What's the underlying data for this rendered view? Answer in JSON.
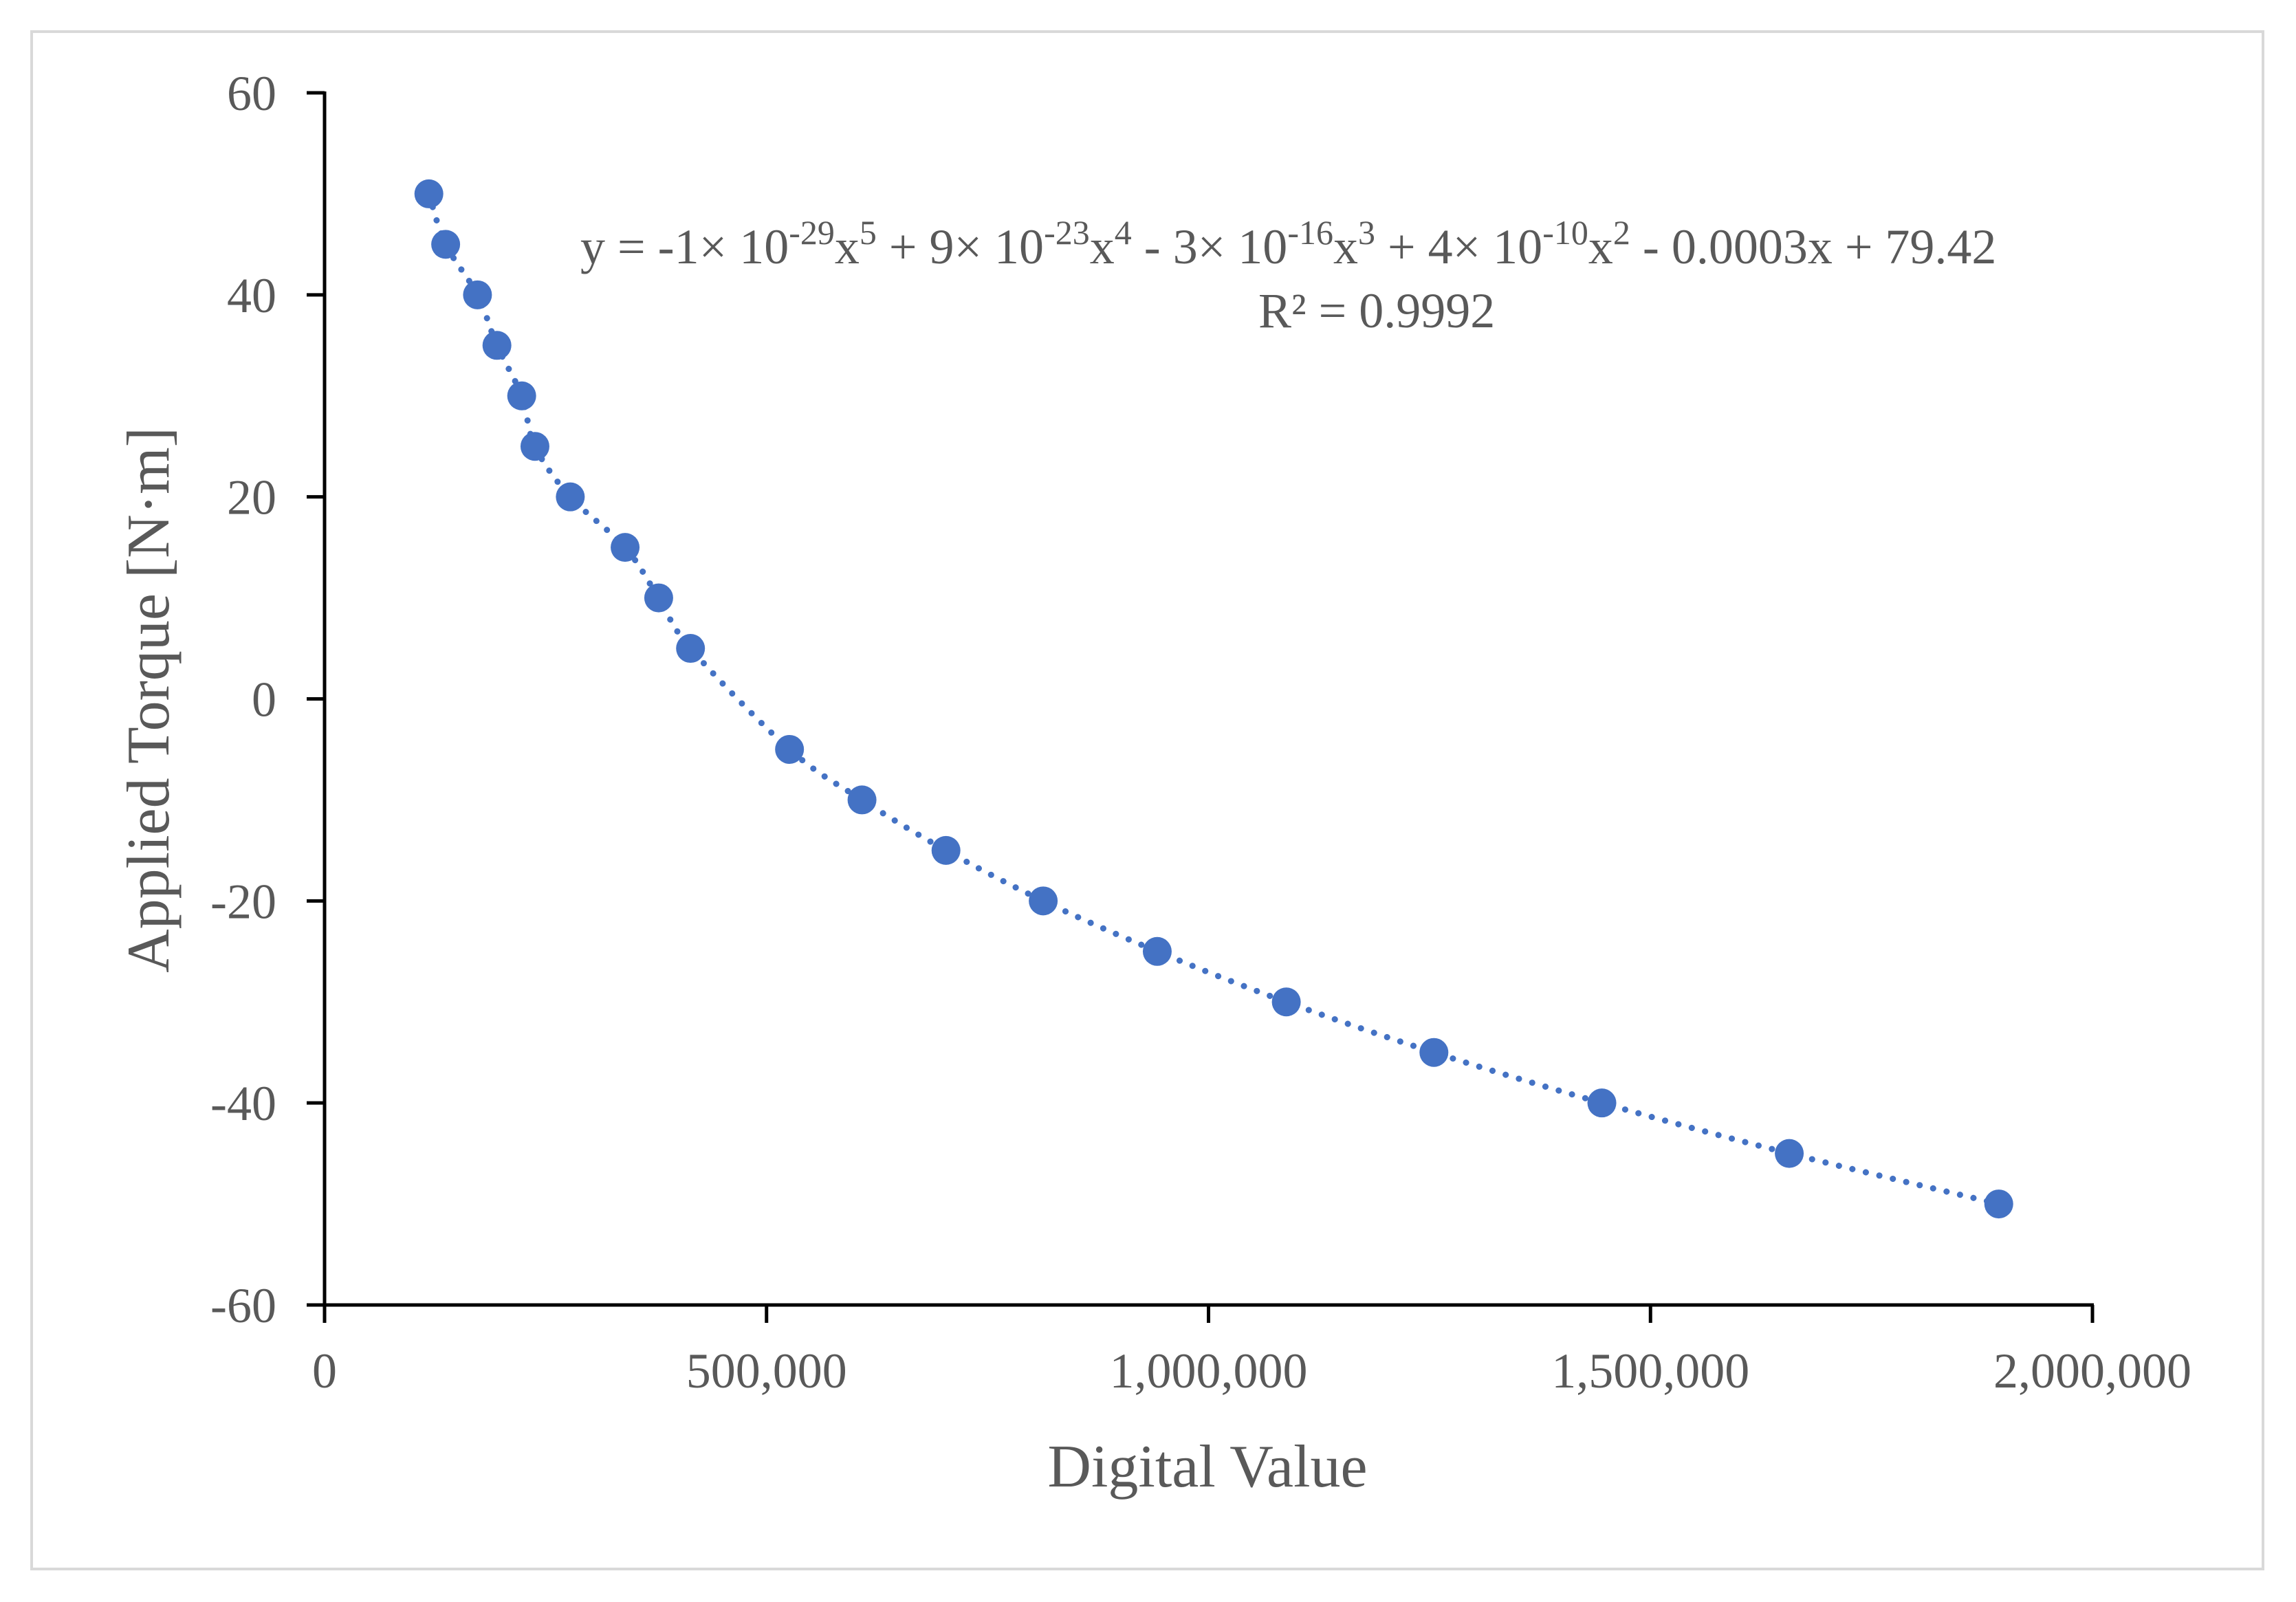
{
  "chart_data": {
    "type": "scatter",
    "title": "",
    "xlabel": "Digital Value",
    "ylabel": "Applied Torque [N·m]",
    "xlim": [
      0,
      2000000
    ],
    "ylim": [
      -60,
      60
    ],
    "x_ticks": [
      0,
      500000,
      1000000,
      1500000,
      2000000
    ],
    "x_tick_labels": [
      "0",
      "500,000",
      "1,000,000",
      "1,500,000",
      "2,000,000"
    ],
    "y_ticks": [
      -60,
      -40,
      -20,
      0,
      20,
      40,
      60
    ],
    "y_tick_labels": [
      "-60",
      "-40",
      "-20",
      "0",
      "20",
      "40",
      "60"
    ],
    "grid": false,
    "legend": "none",
    "series": [
      {
        "name": "Applied Torque",
        "color": "#4472c4",
        "points": [
          {
            "x": 118000,
            "y": 50
          },
          {
            "x": 137000,
            "y": 45
          },
          {
            "x": 173000,
            "y": 40
          },
          {
            "x": 195000,
            "y": 35
          },
          {
            "x": 223000,
            "y": 30
          },
          {
            "x": 238000,
            "y": 25
          },
          {
            "x": 278000,
            "y": 20
          },
          {
            "x": 340000,
            "y": 15
          },
          {
            "x": 378000,
            "y": 10
          },
          {
            "x": 414000,
            "y": 5
          },
          {
            "x": 526000,
            "y": -5
          },
          {
            "x": 608000,
            "y": -10
          },
          {
            "x": 703000,
            "y": -15
          },
          {
            "x": 813000,
            "y": -20
          },
          {
            "x": 942000,
            "y": -25
          },
          {
            "x": 1088000,
            "y": -30
          },
          {
            "x": 1255000,
            "y": -35
          },
          {
            "x": 1445000,
            "y": -40
          },
          {
            "x": 1657000,
            "y": -45
          },
          {
            "x": 1894000,
            "y": -50
          }
        ]
      }
    ],
    "trendline": {
      "type": "polynomial",
      "order": 5,
      "style": "dotted",
      "color": "#4472c4",
      "equation": {
        "p1": "y = -1× 10",
        "e1": "-29",
        "p2": "x",
        "e2": "5",
        "p3": " + 9× 10",
        "e3": "-23",
        "p4": "x",
        "e4": "4",
        "p5": " - 3× 10",
        "e5": "-16",
        "p6": "x",
        "e6": "3",
        "p7": " + 4× 10",
        "e7": "-10",
        "p8": "x",
        "e8": "2",
        "p9": " - 0.0003x + 79.42"
      },
      "r_squared": "R² = 0.9992"
    }
  }
}
